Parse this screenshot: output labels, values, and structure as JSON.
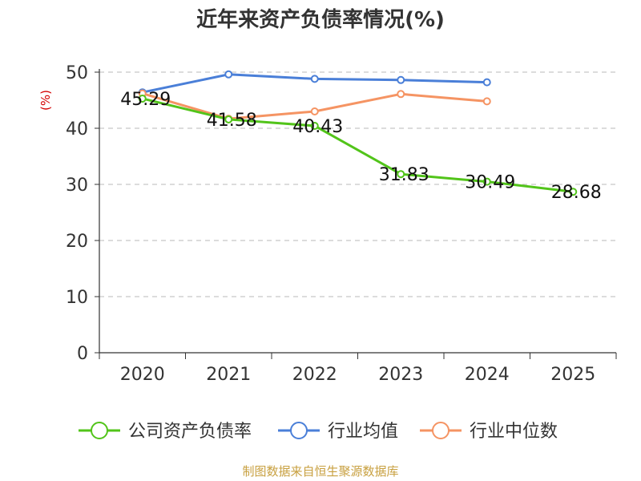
{
  "chart_data": {
    "type": "line",
    "title": "近年来资产负债率情况(%)",
    "unit_label": "(%)",
    "x": [
      "2020",
      "2021",
      "2022",
      "2023",
      "2024",
      "2025"
    ],
    "ylim": [
      0,
      50
    ],
    "yticks": [
      0,
      10,
      20,
      30,
      40,
      50
    ],
    "grid": true,
    "legend_position": "bottom",
    "series": [
      {
        "name": "公司资产负债率",
        "color": "#52c41a",
        "values": [
          45.29,
          41.58,
          40.43,
          31.83,
          30.49,
          28.68
        ],
        "labels": [
          "45.29",
          "41.58",
          "40.43",
          "31.83",
          "30.49",
          "28.68"
        ]
      },
      {
        "name": "行业均值",
        "color": "#4a7fd8",
        "values": [
          46.4,
          49.6,
          48.8,
          48.6,
          48.2,
          null
        ]
      },
      {
        "name": "行业中位数",
        "color": "#f59463",
        "values": [
          46.2,
          41.7,
          43.0,
          46.1,
          44.8,
          null
        ]
      }
    ],
    "source": "制图数据来自恒生聚源数据库"
  }
}
